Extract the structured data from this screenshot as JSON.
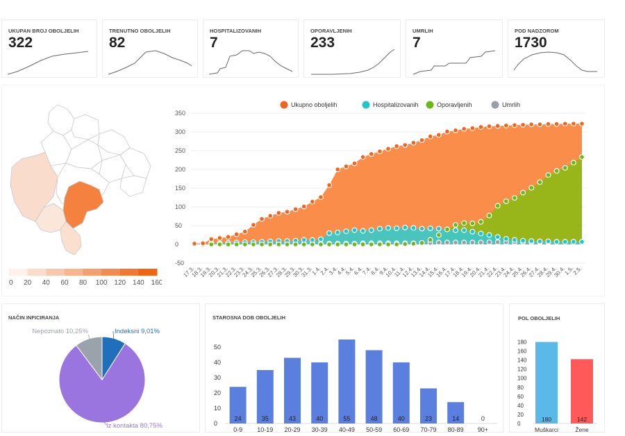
{
  "stats": [
    {
      "label": "UKUPAN BROJ OBOLJELIH",
      "value": "322"
    },
    {
      "label": "TRENUTNO OBOLJELIH",
      "value": "82"
    },
    {
      "label": "HOSPITALIZOVANIH",
      "value": "7"
    },
    {
      "label": "OPORAVLJENIH",
      "value": "233"
    },
    {
      "label": "UMRLIH",
      "value": "7"
    },
    {
      "label": "POD NADZOROM",
      "value": "1730"
    }
  ],
  "map": {
    "legend_ticks": [
      "0",
      "20",
      "40",
      "60",
      "80",
      "100",
      "120",
      "140",
      "160"
    ],
    "legend_colors": [
      "#fdf1ea",
      "#fbdcca",
      "#f9c8ac",
      "#f8b48d",
      "#f69f6e",
      "#f48b4f",
      "#f27730",
      "#f06412"
    ]
  },
  "timeline": {
    "legend": [
      {
        "name": "Ukupno oboljelih",
        "color": "#f0661f"
      },
      {
        "name": "Hospitalizovanih",
        "color": "#21c7c7"
      },
      {
        "name": "Oporavljenih",
        "color": "#6aba15"
      },
      {
        "name": "Umrlih",
        "color": "#9a9ea6"
      }
    ],
    "y_ticks": [
      "350",
      "300",
      "250",
      "200",
      "150",
      "100",
      "50",
      "0",
      "-50"
    ],
    "dates": [
      "17.3.",
      "18.3.",
      "19.3.",
      "20.3.",
      "21.3.",
      "22.3.",
      "23.3.",
      "24.3.",
      "25.3.",
      "26.3.",
      "27.3.",
      "28.3.",
      "29.3.",
      "30.3.",
      "31.3.",
      "1.4.",
      "2.4.",
      "3.4.",
      "4.4.",
      "5.4.",
      "6.4.",
      "7.4.",
      "8.4.",
      "9.4.",
      "10.4.",
      "11.4.",
      "12.4.",
      "13.4.",
      "14.4.",
      "15.4.",
      "16.4.",
      "17.4.",
      "18.4.",
      "19.4.",
      "20.4.",
      "21.4.",
      "22.4.",
      "23.4.",
      "24.4.",
      "25.4.",
      "26.4.",
      "27.4.",
      "28.4.",
      "29.4.",
      "30.4.",
      "1.5.",
      "2.5."
    ]
  },
  "chart_data": [
    {
      "type": "area",
      "title": "",
      "ylim": [
        -50,
        350
      ],
      "x": [
        "17.3.",
        "18.3.",
        "19.3.",
        "20.3.",
        "21.3.",
        "22.3.",
        "23.3.",
        "24.3.",
        "25.3.",
        "26.3.",
        "27.3.",
        "28.3.",
        "29.3.",
        "30.3.",
        "31.3.",
        "1.4.",
        "2.4.",
        "3.4.",
        "4.4.",
        "5.4.",
        "6.4.",
        "7.4.",
        "8.4.",
        "9.4.",
        "10.4.",
        "11.4.",
        "12.4.",
        "13.4.",
        "14.4.",
        "15.4.",
        "16.4.",
        "17.4.",
        "18.4.",
        "19.4.",
        "20.4.",
        "21.4.",
        "22.4.",
        "23.4.",
        "24.4.",
        "25.4.",
        "26.4.",
        "27.4.",
        "28.4.",
        "29.4.",
        "30.4.",
        "1.5.",
        "2.5."
      ],
      "series": [
        {
          "name": "Ukupno oboljelih",
          "values": [
            2,
            3,
            14,
            17,
            20,
            27,
            34,
            52,
            68,
            76,
            84,
            87,
            94,
            101,
            114,
            126,
            158,
            200,
            208,
            216,
            233,
            241,
            248,
            255,
            262,
            265,
            271,
            278,
            288,
            292,
            301,
            304,
            308,
            310,
            313,
            315,
            316,
            317,
            318,
            319,
            320,
            320,
            321,
            321,
            322,
            322,
            322
          ]
        },
        {
          "name": "Hospitalizovanih",
          "values": [
            0,
            0,
            3,
            3,
            4,
            5,
            6,
            6,
            7,
            8,
            9,
            9,
            10,
            12,
            12,
            14,
            30,
            32,
            35,
            38,
            36,
            38,
            42,
            44,
            43,
            45,
            44,
            42,
            43,
            42,
            40,
            38,
            38,
            34,
            29,
            25,
            20,
            15,
            12,
            10,
            9,
            8,
            8,
            7,
            7,
            7,
            7
          ]
        },
        {
          "name": "Oporavljenih",
          "values": [
            0,
            0,
            0,
            0,
            0,
            0,
            0,
            0,
            0,
            0,
            0,
            0,
            0,
            0,
            0,
            0,
            0,
            0,
            0,
            0,
            0,
            0,
            0,
            0,
            0,
            1,
            2,
            4,
            12,
            25,
            40,
            52,
            57,
            56,
            60,
            77,
            103,
            115,
            124,
            138,
            151,
            166,
            185,
            196,
            204,
            218,
            233
          ]
        },
        {
          "name": "Umrlih",
          "values": [
            0,
            0,
            0,
            0,
            0,
            1,
            1,
            1,
            1,
            1,
            2,
            2,
            2,
            2,
            2,
            2,
            2,
            2,
            2,
            2,
            3,
            3,
            3,
            3,
            3,
            3,
            3,
            4,
            4,
            5,
            5,
            5,
            5,
            5,
            5,
            6,
            6,
            6,
            6,
            6,
            6,
            6,
            6,
            7,
            7,
            7,
            7
          ]
        }
      ]
    },
    {
      "type": "pie",
      "title": "NAČIN INFICIRANJA",
      "categories": [
        "Indeksni",
        "Iz kontakta",
        "Nepoznato"
      ],
      "values": [
        9.01,
        80.75,
        10.25
      ],
      "labels": [
        "Indeksni 9,01%",
        "Iz kontakta 80,75%",
        "Nepoznato 10,25%"
      ],
      "colors": [
        "#1f6fba",
        "#9a75df",
        "#9aa3ab"
      ]
    },
    {
      "type": "bar",
      "title": "STAROSNA DOB OBOLJELIH",
      "categories": [
        "0-9",
        "10-19",
        "20-29",
        "30-39",
        "40-49",
        "50-59",
        "60-69",
        "70-79",
        "80-89",
        "90+"
      ],
      "values": [
        24,
        35,
        43,
        40,
        55,
        48,
        40,
        23,
        14,
        0
      ],
      "y_ticks": [
        "50",
        "40",
        "30",
        "20",
        "10",
        "0"
      ],
      "ylim": [
        0,
        60
      ],
      "color": "#5b7fdf"
    },
    {
      "type": "bar",
      "title": "POL OBOLJELIH",
      "categories": [
        "Muškarci",
        "Žene"
      ],
      "values": [
        180,
        142
      ],
      "y_ticks": [
        "180",
        "160",
        "140",
        "120",
        "100",
        "80",
        "60",
        "40",
        "20",
        "0"
      ],
      "ylim": [
        0,
        190
      ],
      "colors": [
        "#5bb9ea",
        "#ff5959"
      ]
    }
  ]
}
